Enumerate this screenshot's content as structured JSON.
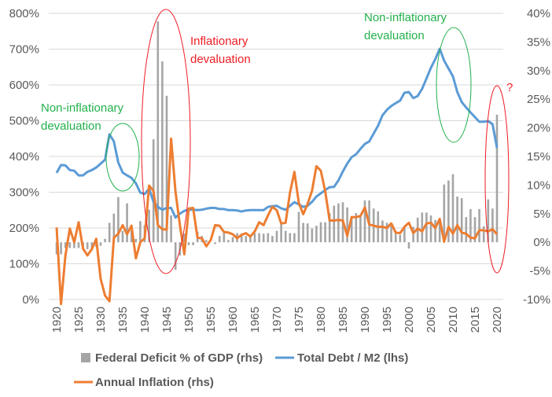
{
  "chart_data": {
    "type": "bar+line",
    "x": [
      1920,
      1921,
      1922,
      1923,
      1924,
      1925,
      1926,
      1927,
      1928,
      1929,
      1930,
      1931,
      1932,
      1933,
      1934,
      1935,
      1936,
      1937,
      1938,
      1939,
      1940,
      1941,
      1942,
      1943,
      1944,
      1945,
      1946,
      1947,
      1948,
      1949,
      1950,
      1951,
      1952,
      1953,
      1954,
      1955,
      1956,
      1957,
      1958,
      1959,
      1960,
      1961,
      1962,
      1963,
      1964,
      1965,
      1966,
      1967,
      1968,
      1969,
      1970,
      1971,
      1972,
      1973,
      1974,
      1975,
      1976,
      1977,
      1978,
      1979,
      1980,
      1981,
      1982,
      1983,
      1984,
      1985,
      1986,
      1987,
      1988,
      1989,
      1990,
      1991,
      1992,
      1993,
      1994,
      1995,
      1996,
      1997,
      1998,
      1999,
      2000,
      2001,
      2002,
      2003,
      2004,
      2005,
      2006,
      2007,
      2008,
      2009,
      2010,
      2011,
      2012,
      2013,
      2014,
      2015,
      2016,
      2017,
      2018,
      2019,
      2020
    ],
    "series": [
      {
        "name": "Federal Deficit % of GDP (rhs)",
        "type": "bar",
        "axis": "right",
        "color": "#a5a5a5",
        "values": [
          -2.1,
          -2.1,
          -1,
          -1,
          -1,
          -1,
          -1,
          -1.2,
          -1,
          -0.8,
          -0.6,
          0.6,
          3.4,
          5,
          7.9,
          2,
          6.8,
          2,
          0.6,
          3.7,
          3,
          5.7,
          18,
          38.6,
          31.6,
          25.6,
          4.7,
          -4.8,
          -2.3,
          1.5,
          -0.5,
          -0.5,
          1.8,
          1.1,
          0.4,
          0,
          -0.3,
          1.1,
          1.6,
          0.4,
          0.9,
          1.6,
          1.5,
          1.1,
          0.9,
          1.6,
          1.6,
          1.5,
          1.6,
          1.1,
          2.0,
          3.2,
          2.0,
          1.6,
          1.6,
          5.3,
          3.4,
          3.3,
          2.4,
          2.9,
          3.5,
          3.5,
          5.1,
          6.4,
          6.8,
          7.0,
          6.1,
          4.6,
          5.1,
          4.7,
          7.3,
          7.3,
          5.9,
          5.4,
          3.8,
          3.4,
          2.9,
          1.6,
          1.3,
          2.5,
          -1.1,
          2.7,
          4.3,
          5.2,
          5.2,
          4.7,
          3.9,
          4.1,
          10.1,
          10.8,
          11.9,
          8.0,
          7.7,
          4.4,
          5.8,
          4.4,
          5.8,
          2.8,
          7.5,
          5.9,
          22.3
        ]
      },
      {
        "name": "Total Debt / M2 (lhs)",
        "type": "line",
        "axis": "left",
        "color": "#5b9bd5",
        "values": [
          354,
          376,
          375,
          362,
          360,
          347,
          347,
          357,
          362,
          369,
          380,
          391,
          462,
          442,
          383,
          355,
          347,
          340,
          325,
          299,
          295,
          310,
          273,
          259,
          251,
          256,
          256,
          229,
          240,
          248,
          251,
          251,
          250,
          251,
          254,
          256,
          256,
          253,
          253,
          250,
          250,
          249,
          246,
          249,
          250,
          250,
          250,
          250,
          259,
          261,
          262,
          255,
          251,
          262,
          272,
          266,
          259,
          262,
          273,
          288,
          297,
          306,
          314,
          315,
          333,
          358,
          380,
          398,
          406,
          421,
          435,
          442,
          464,
          486,
          515,
          530,
          541,
          549,
          556,
          578,
          580,
          563,
          569,
          589,
          618,
          648,
          672,
          701,
          668,
          646,
          624,
          580,
          552,
          537,
          523,
          510,
          497,
          497,
          499,
          490,
          424
        ]
      },
      {
        "name": "Annual Inflation (rhs)",
        "type": "line",
        "axis": "right",
        "color": "#ed7d31",
        "values": [
          2.6,
          -10.8,
          -2.3,
          2.4,
          0,
          3.5,
          -1.1,
          -2.3,
          -1.2,
          0.6,
          -6.4,
          -9.3,
          -10.3,
          0.8,
          1.5,
          3.0,
          1.4,
          2.9,
          -2.8,
          0,
          0.7,
          9.9,
          9.0,
          3.0,
          2.3,
          2.2,
          18.1,
          8.8,
          3.0,
          -2.1,
          5.9,
          6.0,
          0.8,
          0.7,
          -0.7,
          0.4,
          3.0,
          2.9,
          1.8,
          1.7,
          1.4,
          0.7,
          1.3,
          1.6,
          1.0,
          1.9,
          3.5,
          3.0,
          4.7,
          6.2,
          5.6,
          3.3,
          3.4,
          8.7,
          12.3,
          6.9,
          4.9,
          6.7,
          9.0,
          13.3,
          12.5,
          8.9,
          3.8,
          3.8,
          3.9,
          3.8,
          1.1,
          4.4,
          4.4,
          4.6,
          6.1,
          3.1,
          2.9,
          2.7,
          2.7,
          2.5,
          3.3,
          1.7,
          1.6,
          2.7,
          3.4,
          1.6,
          2.4,
          1.9,
          3.3,
          3.4,
          2.5,
          4.1,
          0.1,
          2.7,
          1.5,
          3.0,
          1.7,
          1.5,
          0.8,
          0.7,
          2.1,
          2.1,
          1.9,
          2.3,
          1.4
        ]
      }
    ],
    "left_axis": {
      "ylim": [
        0,
        800
      ],
      "ticks": [
        "0%",
        "100%",
        "200%",
        "300%",
        "400%",
        "500%",
        "600%",
        "700%",
        "800%"
      ]
    },
    "right_axis": {
      "ylim": [
        -10,
        40
      ],
      "ticks": [
        "-10%",
        "-5%",
        "0%",
        "5%",
        "10%",
        "15%",
        "20%",
        "25%",
        "30%",
        "35%",
        "40%"
      ]
    },
    "x_ticks": [
      "1920",
      "1925",
      "1930",
      "1935",
      "1940",
      "1945",
      "1950",
      "1955",
      "1960",
      "1965",
      "1970",
      "1975",
      "1980",
      "1985",
      "1990",
      "1995",
      "2000",
      "2005",
      "2010",
      "2015",
      "2020"
    ],
    "grid": true,
    "legend_position": "bottom",
    "annotations": [
      {
        "lines": [
          "Non-inflationary",
          "devaluation"
        ],
        "color": "#22b14c"
      },
      {
        "lines": [
          "Inflationary",
          "devaluation"
        ],
        "color": "#ed1c24"
      },
      {
        "lines": [
          "Non-inflationary",
          "devaluation"
        ],
        "color": "#22b14c"
      },
      {
        "lines": [
          "?"
        ],
        "color": "#ed1c24"
      }
    ]
  }
}
